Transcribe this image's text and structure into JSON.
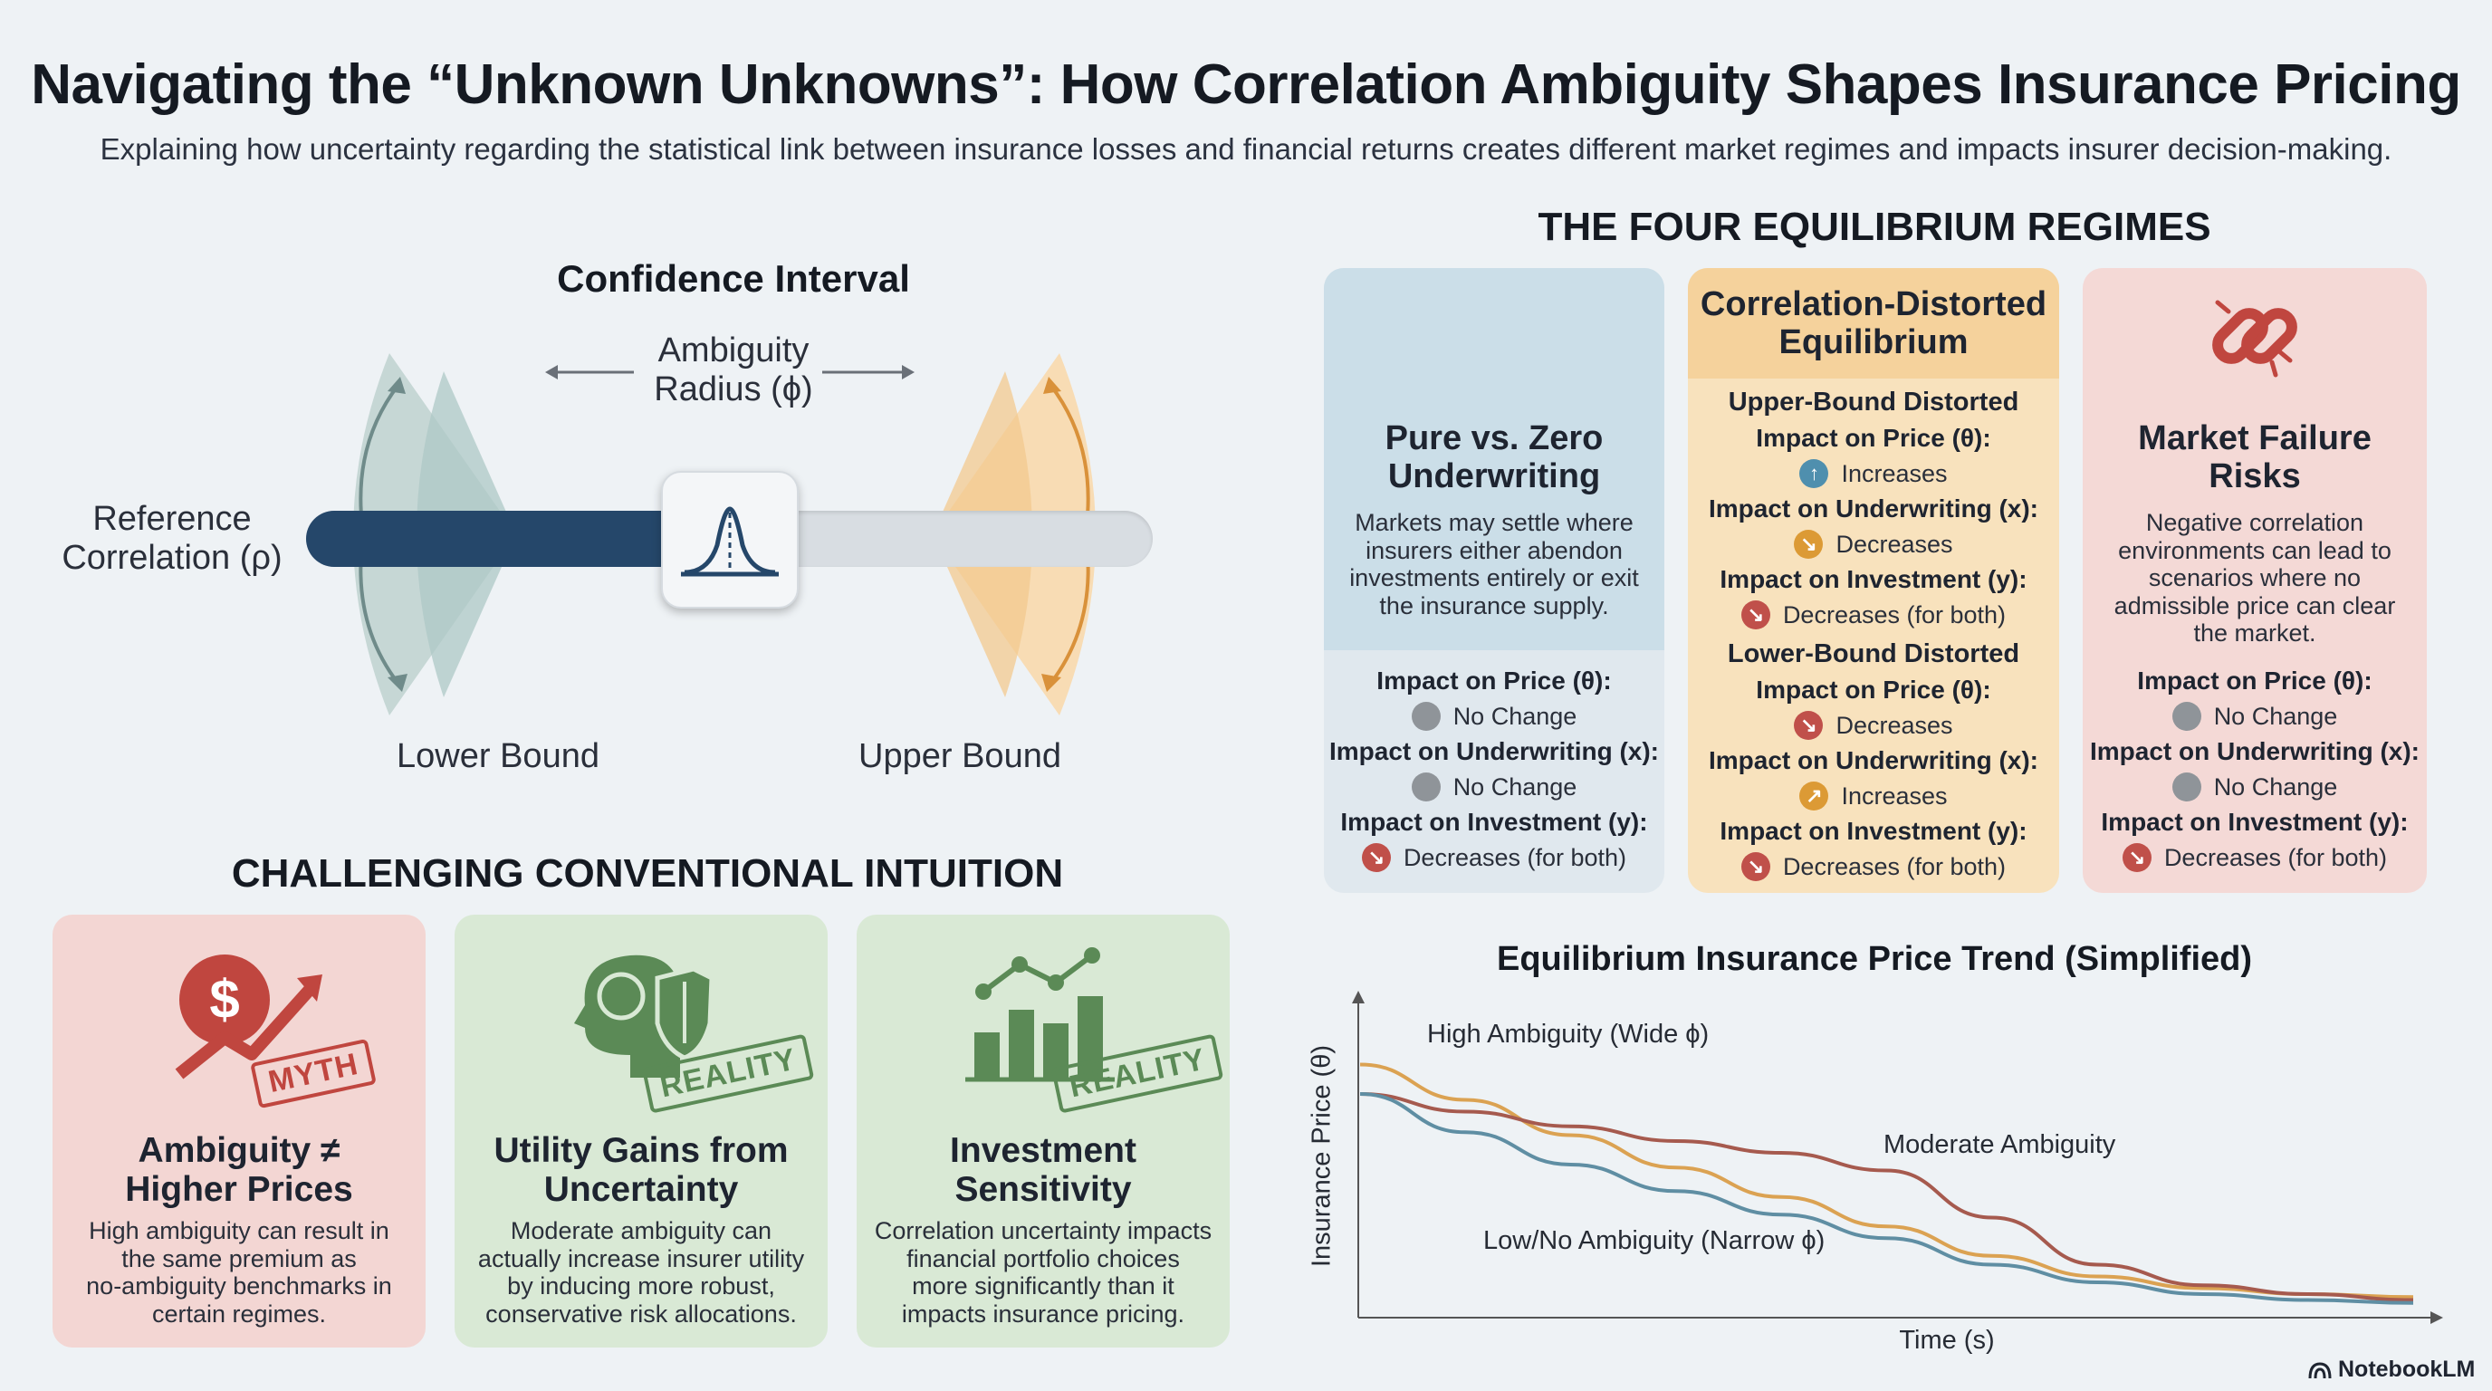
{
  "header": {
    "title": "Navigating the “Unknown Unknowns”: How Correlation Ambiguity Shapes Insurance Pricing",
    "subtitle": "Explaining how uncertainty regarding the statistical link between insurance losses and financial returns creates different market regimes and impacts insurer decision-making."
  },
  "confidence": {
    "title": "Confidence Interval",
    "radius_label": "Ambiguity\nRadius (ϕ)",
    "reference_label": "Reference\nCorrelation (ρ)",
    "lower_label": "Lower Bound",
    "upper_label": "Upper Bound",
    "slider_fraction": 0.52,
    "colors": {
      "left": "#adc6c4",
      "right": "#f2c893",
      "track_dark": "#25476a",
      "track_light": "#d8dde2"
    }
  },
  "regimes": {
    "title": "THE FOUR EQUILIBRIUM REGIMES",
    "pure": {
      "title": "Pure vs. Zero\nUnderwriting",
      "desc": "Markets may settle where\ninsurers either abendon\ninvestments entirely or exit\nthe insurance supply.",
      "price_label": "Impact on Price (θ):",
      "price_value": "No Change",
      "uw_label": "Impact on Underwriting (x):",
      "uw_value": "No Change",
      "inv_label": "Impact on Investment (y):",
      "inv_value": "Decreases (for both)"
    },
    "distorted": {
      "title": "Correlation-Distorted\nEquilibrium",
      "upper_heading": "Upper-Bound Distorted",
      "u_price_label": "Impact on Price (θ):",
      "u_price_value": "Increases",
      "u_uw_label": "Impact on Underwriting (x):",
      "u_uw_value": "Decreases",
      "u_inv_label": "Impact on Investment (y):",
      "u_inv_value": "Decreases (for both)",
      "lower_heading": "Lower-Bound Distorted",
      "l_price_label": "Impact on Price (θ):",
      "l_price_value": "Decreases",
      "l_uw_label": "Impact on Underwriting (x):",
      "l_uw_value": "Increases",
      "l_inv_label": "Impact on Investment (y):",
      "l_inv_value": "Decreases (for both)"
    },
    "failure": {
      "title": "Market Failure\nRisks",
      "desc": "Negative correlation\nenvironments can lead to\nscenarios where no\nadmissible price can clear\nthe market.",
      "price_label": "Impact on Price (θ):",
      "price_value": "No Change",
      "uw_label": "Impact on Underwriting (x):",
      "uw_value": "No Change",
      "inv_label": "Impact on Investment (y):",
      "inv_value": "Decreases (for both)"
    },
    "colors": {
      "blue": "#d0e1ea",
      "orange": "#f8e2bd",
      "orange_head": "#f5d29c",
      "red": "#f4d9d6"
    }
  },
  "intuition": {
    "title": "CHALLENGING CONVENTIONAL INTUITION",
    "cards": [
      {
        "icon": "dollar-growth-icon",
        "stamp": "MYTH",
        "title": "Ambiguity ≠\nHigher Prices",
        "desc": "High ambiguity can result in\nthe same premium as\nno-ambiguity benchmarks in\ncertain regimes."
      },
      {
        "icon": "brain-shield-icon",
        "stamp": "REALITY",
        "title": "Utility Gains from\nUncertainty",
        "desc": "Moderate ambiguity can\nactually increase insurer utility\nby inducing more robust,\nconservative risk allocations."
      },
      {
        "icon": "bar-line-chart-icon",
        "stamp": "REALITY",
        "title": "Investment\nSensitivity",
        "desc": "Correlation uncertainty impacts\nfinancial portfolio choices\nmore significantly than it\nimpacts insurance pricing."
      }
    ]
  },
  "chart_data": {
    "type": "line",
    "title": "Equilibrium Insurance Price Trend (Simplified)",
    "xlabel": "Time (s)",
    "ylabel": "Insurance Price (θ)",
    "x": [
      0,
      0.1,
      0.2,
      0.3,
      0.4,
      0.5,
      0.6,
      0.7,
      0.8,
      0.9,
      1.0
    ],
    "ylim": [
      0,
      1
    ],
    "xlim": [
      0,
      1
    ],
    "grid": false,
    "series": [
      {
        "name": "High Ambiguity (Wide ϕ)",
        "color": "#dba252",
        "values": [
          0.86,
          0.74,
          0.62,
          0.51,
          0.41,
          0.31,
          0.21,
          0.14,
          0.1,
          0.08,
          0.07
        ]
      },
      {
        "name": "Moderate Ambiguity",
        "color": "#a65a4e",
        "values": [
          0.76,
          0.7,
          0.65,
          0.6,
          0.56,
          0.5,
          0.34,
          0.18,
          0.11,
          0.08,
          0.06
        ]
      },
      {
        "name": "Low/No Ambiguity (Narrow ϕ)",
        "color": "#5f8ea3",
        "values": [
          0.76,
          0.63,
          0.52,
          0.43,
          0.35,
          0.27,
          0.18,
          0.12,
          0.08,
          0.06,
          0.05
        ]
      }
    ]
  },
  "branding": {
    "label": "NotebookLM"
  }
}
